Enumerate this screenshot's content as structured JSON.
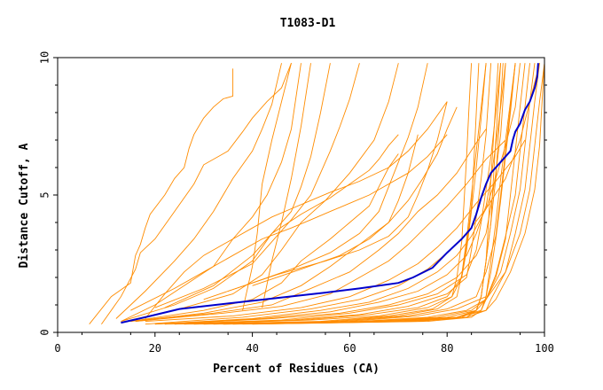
{
  "chart_data": {
    "type": "line",
    "title": "T1083-D1",
    "xlabel": "Percent of Residues (CA)",
    "ylabel": "Distance Cutoff, A",
    "xlim": [
      0,
      100
    ],
    "ylim": [
      0,
      10
    ],
    "x_ticks": [
      "0",
      "20",
      "40",
      "60",
      "80",
      "100"
    ],
    "y_ticks": [
      "0",
      "5",
      "10"
    ],
    "grid": false,
    "legend": "none",
    "colors": {
      "models": "#ff8c00",
      "highlight": "#0000cc",
      "axis": "#000000"
    },
    "highlight_series": {
      "x": [
        13,
        18,
        25,
        35,
        45,
        55,
        62,
        70,
        73,
        77,
        80,
        83,
        85,
        86,
        87,
        88,
        89,
        91,
        93,
        93.5,
        94,
        95,
        96,
        97,
        98,
        98.5,
        98.7
      ],
      "y": [
        0.35,
        0.55,
        0.85,
        1.05,
        1.25,
        1.45,
        1.6,
        1.8,
        2.0,
        2.35,
        2.9,
        3.4,
        3.8,
        4.3,
        4.9,
        5.4,
        5.8,
        6.2,
        6.6,
        7.0,
        7.3,
        7.6,
        8.1,
        8.4,
        8.9,
        9.3,
        9.8
      ]
    },
    "series": [
      {
        "x": [
          6.5,
          11,
          15,
          16,
          17,
          18,
          19,
          22,
          24,
          26,
          27,
          28,
          30,
          32,
          34,
          36,
          36
        ],
        "y": [
          0.3,
          1.3,
          1.8,
          2.8,
          3.2,
          3.8,
          4.3,
          5.0,
          5.6,
          6.0,
          6.7,
          7.2,
          7.8,
          8.2,
          8.5,
          8.6,
          9.6
        ]
      },
      {
        "x": [
          9,
          13,
          16,
          17,
          20,
          24,
          28,
          30,
          35,
          38,
          40,
          43,
          46,
          48
        ],
        "y": [
          0.3,
          1.3,
          2.3,
          2.9,
          3.4,
          4.4,
          5.4,
          6.1,
          6.6,
          7.3,
          7.8,
          8.4,
          8.9,
          9.8
        ]
      },
      {
        "x": [
          12,
          18,
          24,
          28,
          32,
          36,
          40,
          42,
          44,
          46
        ],
        "y": [
          0.5,
          1.5,
          2.6,
          3.4,
          4.4,
          5.6,
          6.6,
          7.4,
          8.3,
          9.8
        ]
      },
      {
        "x": [
          13,
          20,
          26,
          32,
          36,
          40,
          43,
          46,
          48,
          50
        ],
        "y": [
          0.4,
          1.0,
          1.7,
          2.4,
          3.4,
          4.2,
          5.0,
          6.2,
          7.4,
          9.8
        ]
      },
      {
        "x": [
          13,
          24,
          32,
          40,
          44,
          48,
          50,
          52,
          54,
          56
        ],
        "y": [
          0.4,
          1.0,
          1.6,
          2.6,
          3.6,
          4.4,
          5.3,
          6.4,
          8.0,
          9.8
        ]
      },
      {
        "x": [
          14,
          26,
          36,
          42,
          46,
          50,
          55,
          60,
          65,
          68,
          70
        ],
        "y": [
          0.4,
          0.9,
          1.4,
          2.1,
          3.0,
          4.0,
          4.8,
          5.8,
          7.0,
          8.4,
          9.8
        ]
      },
      {
        "x": [
          15,
          30,
          40,
          46,
          50,
          56,
          60,
          64,
          66,
          68,
          70
        ],
        "y": [
          0.4,
          0.8,
          1.2,
          1.8,
          2.6,
          3.4,
          4.0,
          4.6,
          5.3,
          6.0,
          6.5
        ]
      },
      {
        "x": [
          15,
          30,
          42,
          50,
          56,
          62,
          68,
          72,
          75,
          78,
          80,
          82
        ],
        "y": [
          0.4,
          0.7,
          1.1,
          1.7,
          2.4,
          3.2,
          4.0,
          4.8,
          5.6,
          6.5,
          7.4,
          8.2
        ]
      },
      {
        "x": [
          16,
          32,
          44,
          52,
          60,
          66,
          70,
          74,
          78,
          82,
          86,
          88
        ],
        "y": [
          0.4,
          0.7,
          1.0,
          1.6,
          2.2,
          3.0,
          3.6,
          4.4,
          5.0,
          5.8,
          6.9,
          7.4
        ]
      },
      {
        "x": [
          16,
          34,
          46,
          56,
          62,
          68,
          72,
          76,
          80,
          84,
          88,
          92
        ],
        "y": [
          0.4,
          0.7,
          0.95,
          1.4,
          2.0,
          2.6,
          3.2,
          3.9,
          4.6,
          5.4,
          6.3,
          7.0
        ]
      },
      {
        "x": [
          18,
          36,
          50,
          60,
          68,
          74,
          78,
          82,
          86,
          90,
          94,
          96
        ],
        "y": [
          0.4,
          0.6,
          0.9,
          1.3,
          1.9,
          2.5,
          3.1,
          3.8,
          4.7,
          5.5,
          6.4,
          7.0
        ]
      },
      {
        "x": [
          18,
          38,
          52,
          62,
          70,
          76,
          80,
          84,
          88,
          92,
          95,
          97,
          99
        ],
        "y": [
          0.3,
          0.55,
          0.85,
          1.2,
          1.7,
          2.3,
          2.9,
          3.6,
          4.5,
          5.6,
          7.0,
          8.4,
          9.8
        ]
      },
      {
        "x": [
          20,
          40,
          54,
          64,
          72,
          78,
          82,
          85,
          88,
          90,
          92,
          94,
          95
        ],
        "y": [
          0.3,
          0.5,
          0.8,
          1.1,
          1.6,
          2.2,
          2.8,
          3.5,
          4.5,
          5.6,
          6.8,
          8.2,
          9.8
        ]
      },
      {
        "x": [
          20,
          42,
          56,
          66,
          74,
          80,
          84,
          86,
          88,
          89,
          90,
          91,
          92
        ],
        "y": [
          0.3,
          0.5,
          0.75,
          1.1,
          1.5,
          2.1,
          2.8,
          3.6,
          4.6,
          5.6,
          6.8,
          8.2,
          9.8
        ]
      },
      {
        "x": [
          22,
          44,
          58,
          68,
          76,
          82,
          86,
          88,
          89,
          90,
          91,
          92
        ],
        "y": [
          0.3,
          0.5,
          0.7,
          1.0,
          1.4,
          2.0,
          2.8,
          3.6,
          4.6,
          5.8,
          7.2,
          9.8
        ]
      },
      {
        "x": [
          22,
          46,
          60,
          70,
          78,
          84,
          86,
          87,
          88,
          89,
          90,
          91
        ],
        "y": [
          0.3,
          0.45,
          0.7,
          1.0,
          1.4,
          2.1,
          3.0,
          4.0,
          5.2,
          6.4,
          8.0,
          9.8
        ]
      },
      {
        "x": [
          24,
          48,
          62,
          72,
          80,
          84,
          85,
          86,
          87,
          88,
          89
        ],
        "y": [
          0.3,
          0.45,
          0.65,
          0.95,
          1.4,
          2.0,
          3.0,
          4.2,
          5.6,
          7.2,
          9.8
        ]
      },
      {
        "x": [
          24,
          50,
          64,
          74,
          80,
          83,
          84,
          85,
          86,
          87,
          88
        ],
        "y": [
          0.3,
          0.45,
          0.65,
          0.9,
          1.3,
          2.0,
          3.0,
          4.4,
          6.0,
          7.8,
          9.8
        ]
      },
      {
        "x": [
          26,
          52,
          66,
          76,
          81,
          83,
          84,
          85,
          85.5,
          86,
          86.5
        ],
        "y": [
          0.3,
          0.45,
          0.6,
          0.9,
          1.3,
          2.0,
          3.2,
          4.6,
          6.2,
          8.0,
          9.8
        ]
      },
      {
        "x": [
          26,
          54,
          68,
          77,
          81,
          82,
          83,
          83.5,
          84,
          84.5,
          85
        ],
        "y": [
          0.3,
          0.4,
          0.6,
          0.85,
          1.3,
          2.0,
          3.3,
          4.8,
          6.4,
          8.2,
          9.8
        ]
      },
      {
        "x": [
          28,
          56,
          70,
          78,
          82,
          83,
          84,
          85,
          86,
          87,
          88
        ],
        "y": [
          0.3,
          0.4,
          0.6,
          0.85,
          1.3,
          2.1,
          3.4,
          5.0,
          6.6,
          8.2,
          9.8
        ]
      },
      {
        "x": [
          28,
          58,
          72,
          80,
          86,
          88,
          90,
          91,
          92,
          93,
          94
        ],
        "y": [
          0.3,
          0.4,
          0.6,
          0.85,
          1.3,
          2.2,
          3.5,
          5.0,
          6.6,
          8.2,
          9.8
        ]
      },
      {
        "x": [
          30,
          60,
          74,
          82,
          88,
          89,
          90,
          91,
          92,
          93,
          94
        ],
        "y": [
          0.3,
          0.4,
          0.6,
          0.85,
          1.3,
          2.2,
          3.4,
          4.8,
          6.4,
          8.0,
          9.8
        ]
      },
      {
        "x": [
          30,
          62,
          76,
          84,
          88,
          90,
          92,
          93,
          94,
          95,
          96
        ],
        "y": [
          0.3,
          0.4,
          0.55,
          0.8,
          1.2,
          2.0,
          3.4,
          5.0,
          6.6,
          8.2,
          9.8
        ]
      },
      {
        "x": [
          32,
          64,
          78,
          85,
          88,
          90,
          92,
          94,
          95,
          96,
          97
        ],
        "y": [
          0.3,
          0.4,
          0.55,
          0.8,
          1.2,
          2.1,
          3.5,
          5.0,
          6.6,
          8.2,
          9.8
        ]
      },
      {
        "x": [
          32,
          66,
          80,
          86,
          88,
          91,
          93,
          95,
          96,
          97,
          98
        ],
        "y": [
          0.3,
          0.4,
          0.55,
          0.8,
          1.2,
          2.2,
          3.6,
          5.2,
          6.8,
          8.4,
          9.8
        ]
      },
      {
        "x": [
          34,
          68,
          82,
          87,
          88,
          92,
          94,
          96,
          97,
          98,
          99
        ],
        "y": [
          0.3,
          0.4,
          0.55,
          0.8,
          1.2,
          2.2,
          3.6,
          5.2,
          6.8,
          8.4,
          9.8
        ]
      },
      {
        "x": [
          34,
          70,
          82,
          88,
          89,
          92,
          95,
          97,
          98,
          99,
          100
        ],
        "y": [
          0.3,
          0.4,
          0.55,
          0.8,
          1.2,
          2.2,
          3.6,
          5.2,
          6.8,
          8.4,
          9.8
        ]
      },
      {
        "x": [
          36,
          72,
          84,
          88,
          90,
          93,
          96,
          98,
          99,
          99.5,
          100
        ],
        "y": [
          0.3,
          0.4,
          0.55,
          0.8,
          1.2,
          2.2,
          3.6,
          5.2,
          6.8,
          8.4,
          9.8
        ]
      },
      {
        "x": [
          36,
          70,
          82,
          86,
          87,
          88,
          89,
          90,
          90.5,
          91,
          91.5
        ],
        "y": [
          0.3,
          0.4,
          0.55,
          0.8,
          1.3,
          2.6,
          4.0,
          5.6,
          7.0,
          8.4,
          9.8
        ]
      },
      {
        "x": [
          38,
          72,
          83,
          86,
          87,
          88,
          89,
          89.5,
          90,
          90.5,
          91
        ],
        "y": [
          0.3,
          0.4,
          0.55,
          0.8,
          1.3,
          2.6,
          4.0,
          5.6,
          7.0,
          8.4,
          9.8
        ]
      },
      {
        "x": [
          40,
          74,
          84,
          86,
          87,
          88,
          88.5,
          89,
          89.5,
          90,
          90.5
        ],
        "y": [
          0.3,
          0.4,
          0.55,
          0.8,
          1.3,
          2.6,
          4.0,
          5.6,
          7.0,
          8.4,
          9.8
        ]
      },
      {
        "x": [
          40,
          76,
          85,
          87,
          88,
          89,
          90,
          91,
          92,
          93,
          94
        ],
        "y": [
          0.3,
          0.4,
          0.55,
          0.8,
          1.3,
          2.6,
          4.0,
          5.6,
          7.0,
          8.4,
          9.8
        ]
      },
      {
        "x": [
          18,
          22,
          26,
          30,
          36,
          40,
          44,
          48,
          52,
          56,
          62,
          68,
          72,
          76,
          80
        ],
        "y": [
          0.5,
          1.4,
          2.2,
          2.8,
          3.4,
          3.8,
          4.2,
          4.5,
          4.8,
          5.1,
          5.5,
          6.0,
          6.6,
          7.4,
          8.4
        ]
      },
      {
        "x": [
          15,
          24,
          30,
          36,
          42,
          48,
          52,
          56,
          60,
          64,
          68,
          72,
          76,
          80
        ],
        "y": [
          0.8,
          1.6,
          2.2,
          2.8,
          3.4,
          3.8,
          4.1,
          4.4,
          4.7,
          5.0,
          5.4,
          5.8,
          6.4,
          7.2
        ]
      },
      {
        "x": [
          20,
          30,
          40,
          44,
          48,
          52,
          54,
          56,
          58,
          60,
          62
        ],
        "y": [
          0.9,
          1.6,
          2.5,
          3.3,
          4.1,
          5.0,
          5.8,
          6.6,
          7.5,
          8.5,
          9.8
        ]
      },
      {
        "x": [
          22,
          32,
          40,
          44,
          50,
          56,
          60,
          64,
          66,
          68,
          70
        ],
        "y": [
          0.9,
          1.7,
          2.8,
          3.6,
          4.3,
          4.9,
          5.4,
          5.9,
          6.3,
          6.8,
          7.2
        ]
      },
      {
        "x": [
          30,
          40,
          48,
          56,
          62,
          66,
          68,
          70,
          72,
          74,
          76
        ],
        "y": [
          1.2,
          1.8,
          2.3,
          2.9,
          3.6,
          4.4,
          5.3,
          6.2,
          7.1,
          8.2,
          9.8
        ]
      },
      {
        "x": [
          35,
          45,
          55,
          62,
          68,
          72,
          74,
          76,
          78,
          80
        ],
        "y": [
          1.5,
          2.1,
          2.6,
          3.0,
          3.5,
          4.2,
          5.0,
          5.9,
          7.0,
          8.4
        ]
      },
      {
        "x": [
          40,
          50,
          58,
          64,
          68,
          70,
          72,
          74
        ],
        "y": [
          1.7,
          2.3,
          2.8,
          3.4,
          4.0,
          4.8,
          5.8,
          7.2
        ]
      },
      {
        "x": [
          42,
          44,
          46,
          48,
          50,
          52
        ],
        "y": [
          0.9,
          2.6,
          4.0,
          5.6,
          7.5,
          9.8
        ]
      },
      {
        "x": [
          38,
          40,
          41,
          42,
          44,
          46,
          48
        ],
        "y": [
          0.8,
          2.4,
          3.6,
          5.4,
          7.0,
          8.4,
          9.8
        ]
      }
    ]
  }
}
